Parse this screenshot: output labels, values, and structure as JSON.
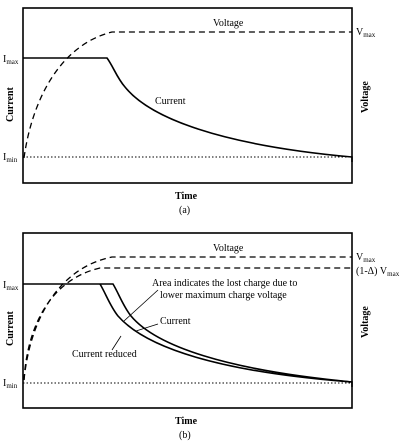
{
  "panel_a": {
    "caption": "(a)",
    "x_axis_label": "Time",
    "y_left_label": "Current",
    "y_right_label": "Voltage",
    "i_max": {
      "main": "I",
      "sub": "max"
    },
    "i_min": {
      "main": "I",
      "sub": "min"
    },
    "v_max": {
      "main": "V",
      "sub": "max"
    },
    "voltage_curve_label": "Voltage",
    "current_curve_label": "Current"
  },
  "panel_b": {
    "caption": "(b)",
    "x_axis_label": "Time",
    "y_left_label": "Current",
    "y_right_label": "Voltage",
    "i_max": {
      "main": "I",
      "sub": "max"
    },
    "i_min": {
      "main": "I",
      "sub": "min"
    },
    "v_max": {
      "main": "V",
      "sub": "max"
    },
    "v_reduced": {
      "prefix": "(1-Δ) V",
      "sub": "max"
    },
    "voltage_curve_label": "Voltage",
    "current_curve_label": "Current",
    "current_reduced_label": "Current reduced",
    "annotation_line1": "Area indicates the lost charge due to",
    "annotation_line2": "lower maximum charge voltage"
  }
}
